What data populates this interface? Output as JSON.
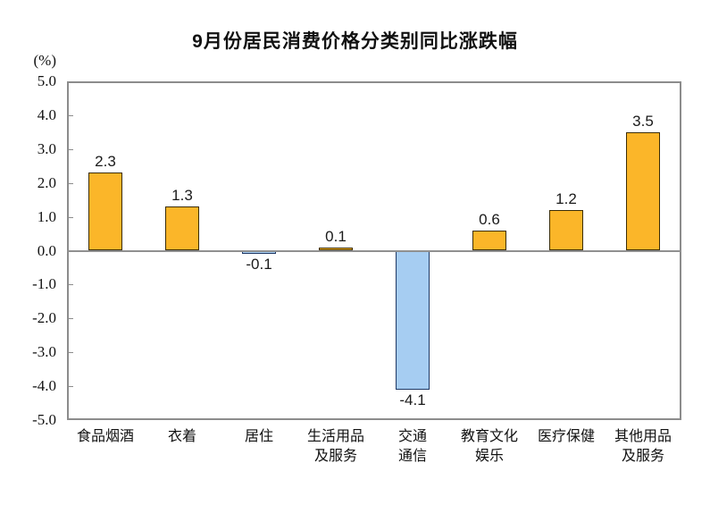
{
  "chart_data": {
    "type": "bar",
    "title": "9月份居民消费价格分类别同比涨跌幅",
    "unit_label": "(%)",
    "xlabel": "",
    "ylabel": "(%)",
    "categories": [
      "食品烟酒",
      "衣着",
      "居住",
      "生活用品\n及服务",
      "交通\n通信",
      "教育文化\n娱乐",
      "医疗保健",
      "其他用品\n及服务"
    ],
    "values": [
      2.3,
      1.3,
      -0.1,
      0.1,
      -4.1,
      0.6,
      1.2,
      3.5
    ],
    "data_labels": [
      "2.3",
      "1.3",
      "-0.1",
      "0.1",
      "-4.1",
      "0.6",
      "1.2",
      "3.5"
    ],
    "ylim": [
      -5.0,
      5.0
    ],
    "ytick_step": 1.0,
    "yticks": [
      "5.0",
      "4.0",
      "3.0",
      "2.0",
      "1.0",
      "0.0",
      "-1.0",
      "-2.0",
      "-3.0",
      "-4.0",
      "-5.0"
    ],
    "grid": false,
    "legend": "none",
    "colors": {
      "positive_fill": "#FBB629",
      "positive_border": "#3B2D06",
      "negative_fill": "#A6CDF2",
      "negative_border": "#1F3864",
      "axis_line": "#8C8C8C",
      "zero_line": "#909090"
    }
  }
}
